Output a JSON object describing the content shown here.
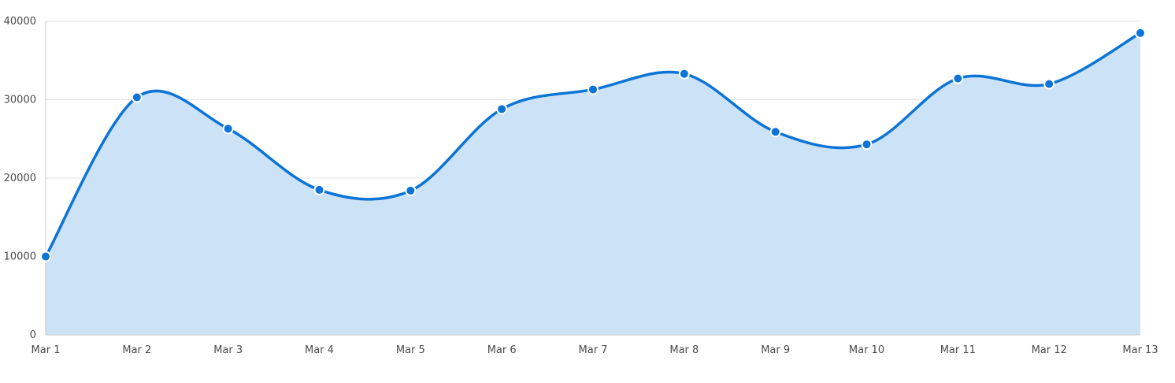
{
  "chart_data": {
    "type": "area",
    "title": "",
    "xlabel": "",
    "ylabel": "",
    "categories": [
      "Mar 1",
      "Mar 2",
      "Mar 3",
      "Mar 4",
      "Mar 5",
      "Mar 6",
      "Mar 7",
      "Mar 8",
      "Mar 9",
      "Mar 10",
      "Mar 11",
      "Mar 12",
      "Mar 13"
    ],
    "series": [
      {
        "values": [
          10000,
          30300,
          26300,
          18500,
          18400,
          28800,
          31300,
          33300,
          25900,
          24300,
          32700,
          32000,
          38500
        ],
        "color": "#0b74d6",
        "fill_color": "#cce2f6"
      }
    ],
    "y_ticks": [
      0,
      10000,
      20000,
      30000,
      40000
    ],
    "ylim": [
      0,
      40000
    ],
    "grid": true,
    "legend": "none",
    "smooth": true
  }
}
